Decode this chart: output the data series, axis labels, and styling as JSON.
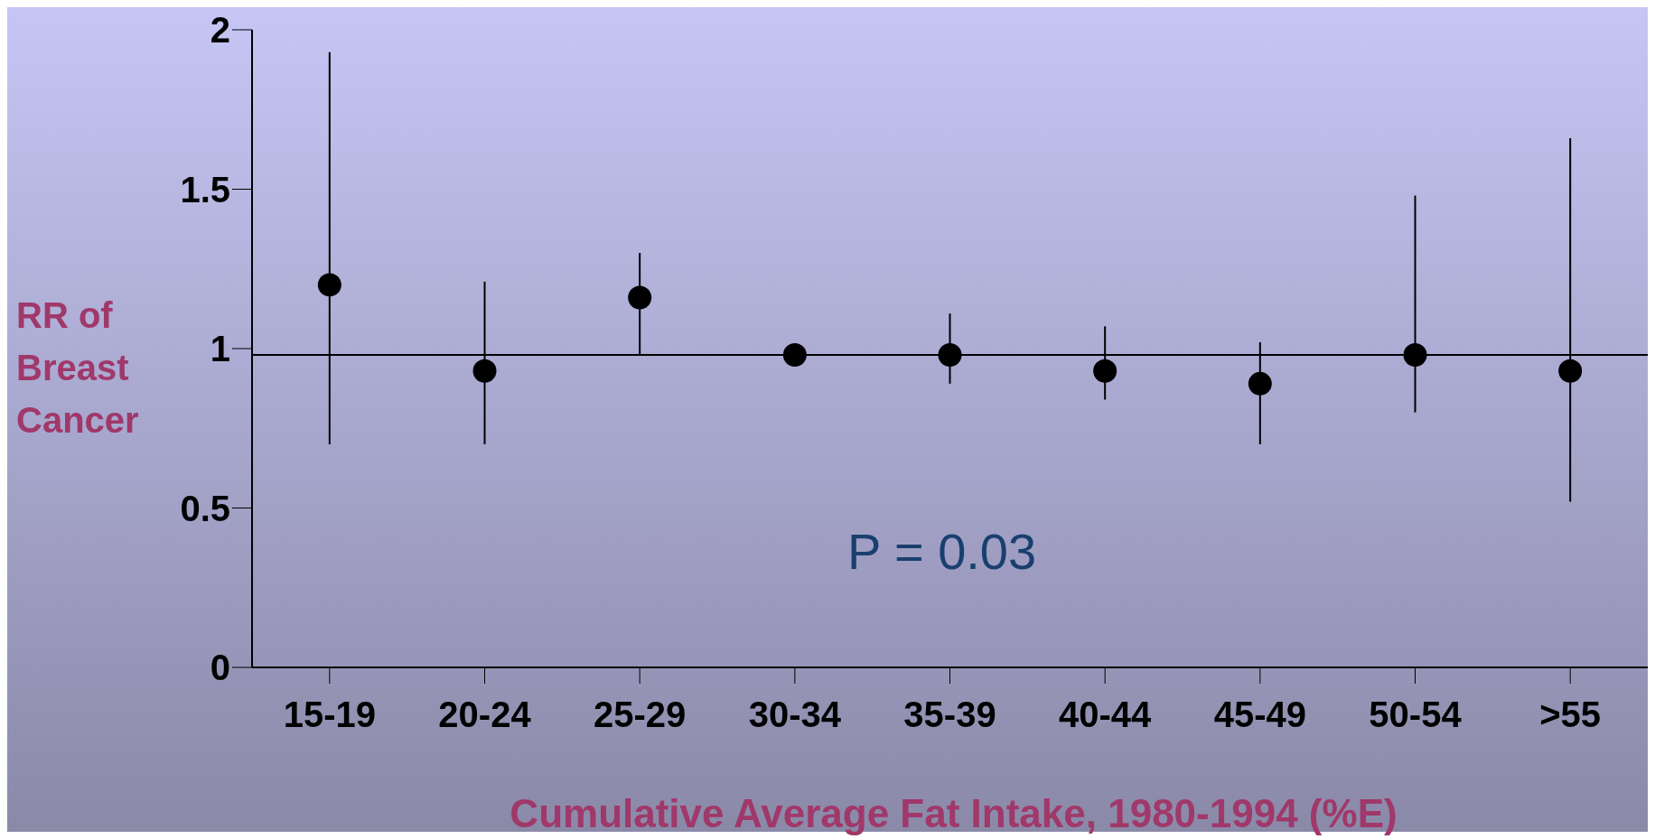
{
  "chart_data": {
    "type": "scatter",
    "xlabel": "Cumulative Average Fat Intake, 1980-1994 (%E)",
    "ylabel": "RR of Breast Cancer",
    "categories": [
      "15-19",
      "20-24",
      "25-29",
      "30-34",
      "35-39",
      "40-44",
      "45-49",
      "50-54",
      ">55"
    ],
    "series": [
      {
        "color": "#000000",
        "values": [
          1.2,
          0.93,
          1.16,
          0.98,
          0.98,
          0.93,
          0.89,
          0.98,
          0.93
        ],
        "errors": [
          [
            0.7,
            1.93
          ],
          [
            0.7,
            1.21
          ],
          [
            0.98,
            1.3
          ],
          null,
          [
            0.89,
            1.11
          ],
          [
            0.84,
            1.07
          ],
          [
            0.7,
            1.02
          ],
          [
            0.8,
            1.48
          ],
          [
            0.52,
            1.66
          ]
        ]
      }
    ],
    "ylim": [
      0,
      2
    ],
    "yticks": [
      0,
      0.5,
      1,
      1.5,
      2
    ],
    "marker": "circle",
    "ref_lines": [
      {
        "axis": "y",
        "value": 0.98,
        "color": "#000000"
      }
    ],
    "annotations": [
      "P = 0.03"
    ]
  }
}
